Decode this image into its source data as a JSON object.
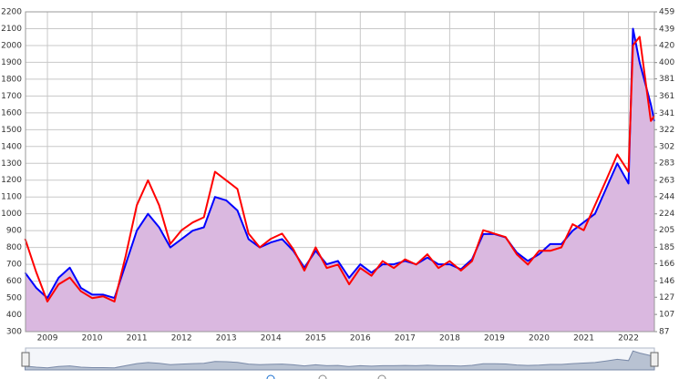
{
  "chart_data": {
    "type": "line",
    "x": [
      2008.5,
      2008.75,
      2009,
      2009.25,
      2009.5,
      2009.75,
      2010,
      2010.25,
      2010.5,
      2010.75,
      2011,
      2011.25,
      2011.5,
      2011.75,
      2012,
      2012.25,
      2012.5,
      2012.75,
      2013,
      2013.25,
      2013.5,
      2013.75,
      2014,
      2014.25,
      2014.5,
      2014.75,
      2015,
      2015.25,
      2015.5,
      2015.75,
      2016,
      2016.25,
      2016.5,
      2016.75,
      2017,
      2017.25,
      2017.5,
      2017.75,
      2018,
      2018.25,
      2018.5,
      2018.75,
      2019,
      2019.25,
      2019.5,
      2019.75,
      2020,
      2020.25,
      2020.5,
      2020.75,
      2021,
      2021.25,
      2021.5,
      2021.75,
      2022,
      2022.1,
      2022.25,
      2022.5,
      2022.58
    ],
    "series": [
      {
        "color": "#0000ff",
        "area_color": "#dab8e0",
        "values": [
          650,
          560,
          500,
          620,
          680,
          560,
          520,
          520,
          500,
          700,
          900,
          1000,
          920,
          800,
          850,
          900,
          920,
          1100,
          1080,
          1020,
          850,
          800,
          830,
          850,
          780,
          680,
          780,
          700,
          720,
          620,
          700,
          650,
          700,
          700,
          720,
          700,
          740,
          700,
          700,
          670,
          730,
          880,
          880,
          860,
          770,
          720,
          760,
          820,
          820,
          900,
          950,
          1000,
          1150,
          1300,
          1180,
          2100,
          1900,
          1650,
          1550
        ]
      },
      {
        "color": "#ff0000",
        "axis": "y2",
        "values": [
          195,
          156,
          122,
          142,
          150,
          134,
          126,
          128,
          122,
          175,
          234,
          263,
          234,
          189,
          205,
          214,
          220,
          273,
          263,
          253,
          201,
          185,
          195,
          201,
          183,
          158,
          185,
          161,
          165,
          142,
          161,
          152,
          169,
          161,
          171,
          165,
          177,
          161,
          169,
          158,
          169,
          205,
          201,
          197,
          177,
          165,
          181,
          181,
          185,
          212,
          205,
          234,
          263,
          293,
          273,
          420,
          430,
          332,
          338
        ]
      }
    ],
    "xlim": [
      2008.51,
      2022.58
    ],
    "xticks": [
      2009,
      2010,
      2011,
      2012,
      2013,
      2014,
      2015,
      2016,
      2017,
      2018,
      2019,
      2020,
      2021,
      2022
    ],
    "ylim": [
      300,
      2200
    ],
    "yticks": [
      300,
      400,
      500,
      600,
      700,
      800,
      900,
      1000,
      1100,
      1200,
      1300,
      1400,
      1500,
      1600,
      1700,
      1800,
      1900,
      2000,
      2100,
      2200
    ],
    "y2lim": [
      87,
      459
    ],
    "y2ticks": [
      87,
      107,
      127,
      146,
      166,
      185,
      205,
      224,
      244,
      263,
      283,
      302,
      322,
      341,
      361,
      381,
      400,
      420,
      439,
      459
    ],
    "grid": true
  }
}
